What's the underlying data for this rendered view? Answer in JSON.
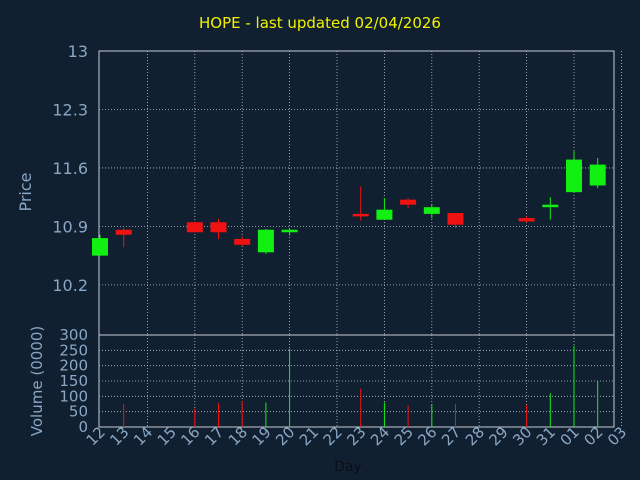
{
  "title": "HOPE - last updated 02/04/2026",
  "colors": {
    "background": "#102031",
    "axis_text": "#8aa7c4",
    "title": "#f2f200",
    "up": "#11f011",
    "down": "#f01111",
    "grid": "#b8c0c8"
  },
  "chart_data": [
    {
      "type": "candlestick",
      "ylabel": "Price",
      "yticks": [
        "13",
        "12.3",
        "11.6",
        "10.9",
        "10.2"
      ],
      "ylim": [
        9.6,
        13.0
      ],
      "categories": [
        "12",
        "13",
        "14",
        "15",
        "16",
        "17",
        "18",
        "19",
        "20",
        "21",
        "22",
        "23",
        "24",
        "25",
        "26",
        "27",
        "28",
        "29",
        "30",
        "31",
        "01",
        "02",
        "03"
      ],
      "candles": [
        {
          "day": "12",
          "open": 10.55,
          "close": 10.76,
          "high": 10.8,
          "low": 10.55
        },
        {
          "day": "13",
          "open": 10.86,
          "close": 10.8,
          "high": 10.88,
          "low": 10.65
        },
        {
          "day": "16",
          "open": 10.95,
          "close": 10.83,
          "high": 10.96,
          "low": 10.83
        },
        {
          "day": "17",
          "open": 10.95,
          "close": 10.83,
          "high": 10.99,
          "low": 10.75
        },
        {
          "day": "18",
          "open": 10.75,
          "close": 10.68,
          "high": 10.78,
          "low": 10.67
        },
        {
          "day": "19",
          "open": 10.59,
          "close": 10.86,
          "high": 10.87,
          "low": 10.57
        },
        {
          "day": "20",
          "open": 10.84,
          "close": 10.86,
          "high": 10.87,
          "low": 10.79
        },
        {
          "day": "23",
          "open": 11.05,
          "close": 11.03,
          "high": 11.38,
          "low": 10.97
        },
        {
          "day": "24",
          "open": 10.98,
          "close": 11.1,
          "high": 11.24,
          "low": 10.98
        },
        {
          "day": "25",
          "open": 11.22,
          "close": 11.16,
          "high": 11.24,
          "low": 11.12
        },
        {
          "day": "26",
          "open": 11.05,
          "close": 11.13,
          "high": 11.17,
          "low": 11.0
        },
        {
          "day": "27",
          "open": 11.06,
          "close": 10.92,
          "high": 11.06,
          "low": 10.88
        },
        {
          "day": "30",
          "open": 11.0,
          "close": 10.96,
          "high": 11.02,
          "low": 10.95
        },
        {
          "day": "31",
          "open": 11.14,
          "close": 11.16,
          "high": 11.25,
          "low": 10.98
        },
        {
          "day": "01",
          "open": 11.31,
          "close": 11.7,
          "high": 11.8,
          "low": 11.31
        },
        {
          "day": "02",
          "open": 11.39,
          "close": 11.64,
          "high": 11.72,
          "low": 11.36
        }
      ]
    },
    {
      "type": "bar",
      "xlabel": "Day",
      "ylabel": "Volume (0000)",
      "yticks": [
        "300",
        "250",
        "200",
        "150",
        "100",
        "50",
        "0"
      ],
      "ylim": [
        0,
        300
      ],
      "categories": [
        "12",
        "13",
        "14",
        "15",
        "16",
        "17",
        "18",
        "19",
        "20",
        "21",
        "22",
        "23",
        "24",
        "25",
        "26",
        "27",
        "28",
        "29",
        "30",
        "31",
        "01",
        "02",
        "03"
      ],
      "bars": [
        {
          "day": "12",
          "value": 0,
          "dir": "up"
        },
        {
          "day": "13",
          "value": 75,
          "dir": "down"
        },
        {
          "day": "16",
          "value": 60,
          "dir": "down"
        },
        {
          "day": "17",
          "value": 78,
          "dir": "down"
        },
        {
          "day": "18",
          "value": 85,
          "dir": "down"
        },
        {
          "day": "19",
          "value": 80,
          "dir": "up"
        },
        {
          "day": "20",
          "value": 255,
          "dir": "up"
        },
        {
          "day": "23",
          "value": 125,
          "dir": "down"
        },
        {
          "day": "24",
          "value": 80,
          "dir": "up"
        },
        {
          "day": "25",
          "value": 70,
          "dir": "down"
        },
        {
          "day": "26",
          "value": 75,
          "dir": "up"
        },
        {
          "day": "27",
          "value": 75,
          "dir": "down"
        },
        {
          "day": "30",
          "value": 72,
          "dir": "down"
        },
        {
          "day": "31",
          "value": 110,
          "dir": "up"
        },
        {
          "day": "01",
          "value": 265,
          "dir": "up"
        },
        {
          "day": "02",
          "value": 150,
          "dir": "up"
        }
      ]
    }
  ]
}
